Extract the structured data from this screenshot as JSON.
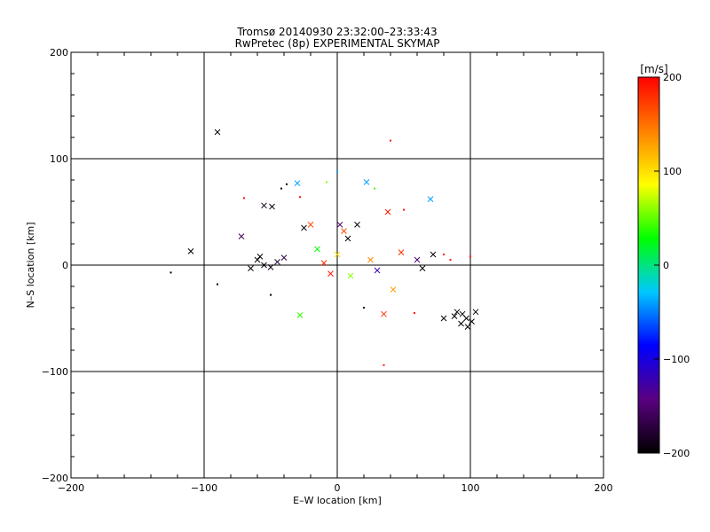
{
  "chart_data": {
    "type": "scatter",
    "title": "Tromsø 20140930 23:32:00–23:33:43",
    "subtitle": "RwPretec (8p) EXPERIMENTAL SKYMAP",
    "xlabel": "E–W location [km]",
    "ylabel": "N–S location [km]",
    "xlim": [
      -200,
      200
    ],
    "ylim": [
      -200,
      200
    ],
    "xticks": [
      -200,
      -100,
      0,
      100,
      200
    ],
    "yticks": [
      -200,
      -100,
      0,
      100,
      200
    ],
    "xtick_labels": [
      "−200",
      "−100",
      "0",
      "100",
      "200"
    ],
    "ytick_labels": [
      "−200",
      "−100",
      "0",
      "100",
      "200"
    ],
    "grid_lines_x": [
      -100,
      0,
      100
    ],
    "grid_lines_y": [
      -100,
      0,
      100
    ],
    "colorbar": {
      "label": "[m/s]",
      "range": [
        -200,
        200
      ],
      "ticks": [
        -200,
        -100,
        0,
        100,
        200
      ],
      "tick_labels": [
        "−200",
        "−100",
        "0",
        "100",
        "200"
      ],
      "colormap": [
        "#000000",
        "#5a0080",
        "#0000ff",
        "#00c8ff",
        "#00ff00",
        "#ffff00",
        "#ff8000",
        "#ff0000"
      ]
    },
    "series": [
      {
        "name": "x-markers",
        "marker": "x",
        "points": [
          {
            "x": -90,
            "y": 125,
            "v": -200
          },
          {
            "x": -110,
            "y": 13,
            "v": -200
          },
          {
            "x": -72,
            "y": 27,
            "v": -160
          },
          {
            "x": -55,
            "y": 56,
            "v": -190
          },
          {
            "x": -49,
            "y": 55,
            "v": -190
          },
          {
            "x": -60,
            "y": 5,
            "v": -200
          },
          {
            "x": -55,
            "y": 0,
            "v": -200
          },
          {
            "x": -50,
            "y": -2,
            "v": -190
          },
          {
            "x": -65,
            "y": -3,
            "v": -200
          },
          {
            "x": -58,
            "y": 8,
            "v": -200
          },
          {
            "x": -45,
            "y": 3,
            "v": -180
          },
          {
            "x": -40,
            "y": 7,
            "v": -170
          },
          {
            "x": -30,
            "y": 77,
            "v": -40
          },
          {
            "x": -25,
            "y": 35,
            "v": -190
          },
          {
            "x": -20,
            "y": 38,
            "v": 170
          },
          {
            "x": -10,
            "y": 2,
            "v": 180
          },
          {
            "x": -28,
            "y": -47,
            "v": 40
          },
          {
            "x": 2,
            "y": 38,
            "v": -150
          },
          {
            "x": 5,
            "y": 32,
            "v": 170
          },
          {
            "x": 8,
            "y": 25,
            "v": -200
          },
          {
            "x": 15,
            "y": 38,
            "v": -200
          },
          {
            "x": 22,
            "y": 78,
            "v": -40
          },
          {
            "x": 38,
            "y": 50,
            "v": 190
          },
          {
            "x": 35,
            "y": -46,
            "v": 180
          },
          {
            "x": 42,
            "y": -23,
            "v": 130
          },
          {
            "x": 48,
            "y": 12,
            "v": 180
          },
          {
            "x": 60,
            "y": 5,
            "v": -150
          },
          {
            "x": 64,
            "y": -3,
            "v": -200
          },
          {
            "x": 70,
            "y": 62,
            "v": -40
          },
          {
            "x": 72,
            "y": 10,
            "v": -200
          },
          {
            "x": 80,
            "y": -50,
            "v": -200
          },
          {
            "x": 90,
            "y": -44,
            "v": -200
          },
          {
            "x": 94,
            "y": -46,
            "v": -200
          },
          {
            "x": 97,
            "y": -50,
            "v": -200
          },
          {
            "x": 93,
            "y": -55,
            "v": -200
          },
          {
            "x": 98,
            "y": -58,
            "v": -200
          },
          {
            "x": 101,
            "y": -53,
            "v": -200
          },
          {
            "x": 104,
            "y": -44,
            "v": -200
          },
          {
            "x": 88,
            "y": -48,
            "v": -200
          },
          {
            "x": 10,
            "y": -10,
            "v": 60
          },
          {
            "x": -5,
            "y": -8,
            "v": 190
          },
          {
            "x": 25,
            "y": 5,
            "v": 140
          },
          {
            "x": 30,
            "y": -5,
            "v": -120
          },
          {
            "x": -15,
            "y": 15,
            "v": 30
          },
          {
            "x": 0,
            "y": 10,
            "v": 100
          }
        ]
      },
      {
        "name": "dot-markers",
        "marker": "dot",
        "points": [
          {
            "x": 40,
            "y": 117,
            "v": 190
          },
          {
            "x": 0,
            "y": 88,
            "v": -40
          },
          {
            "x": -42,
            "y": 72,
            "v": -200
          },
          {
            "x": -38,
            "y": 76,
            "v": -200
          },
          {
            "x": -70,
            "y": 63,
            "v": 190
          },
          {
            "x": -125,
            "y": -7,
            "v": -200
          },
          {
            "x": -90,
            "y": -18,
            "v": -200
          },
          {
            "x": -50,
            "y": -28,
            "v": -200
          },
          {
            "x": 35,
            "y": -94,
            "v": 190
          },
          {
            "x": 20,
            "y": -40,
            "v": -190
          },
          {
            "x": 58,
            "y": -45,
            "v": 190
          },
          {
            "x": 50,
            "y": 52,
            "v": 190
          },
          {
            "x": 80,
            "y": 10,
            "v": 190
          },
          {
            "x": 85,
            "y": 5,
            "v": 190
          },
          {
            "x": 100,
            "y": 8,
            "v": 190
          },
          {
            "x": -8,
            "y": 78,
            "v": 60
          },
          {
            "x": 28,
            "y": 72,
            "v": 40
          },
          {
            "x": -28,
            "y": 64,
            "v": 190
          }
        ]
      }
    ]
  }
}
